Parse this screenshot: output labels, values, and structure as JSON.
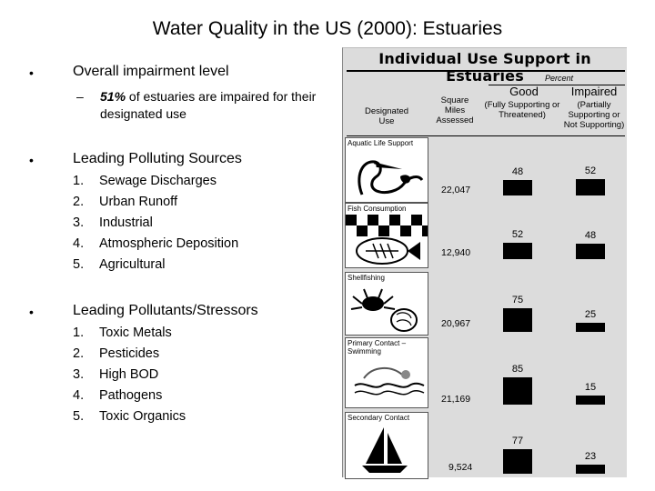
{
  "title": "Water Quality in the US (2000): Estuaries",
  "sections": {
    "impairment": {
      "heading": "Overall impairment level",
      "dash": "–",
      "percent": "51%",
      "text": "of estuaries are impaired for their designated use"
    },
    "sources": {
      "heading": "Leading Polluting Sources",
      "items": [
        {
          "num": "1.",
          "label": "Sewage Discharges"
        },
        {
          "num": "2.",
          "label": "Urban Runoff"
        },
        {
          "num": "3.",
          "label": "Industrial"
        },
        {
          "num": "4.",
          "label": "Atmospheric Deposition"
        },
        {
          "num": "5.",
          "label": "Agricultural"
        }
      ]
    },
    "pollutants": {
      "heading": "Leading Pollutants/Stressors",
      "items": [
        {
          "num": "1.",
          "label": "Toxic Metals"
        },
        {
          "num": "2.",
          "label": "Pesticides"
        },
        {
          "num": "3.",
          "label": "High BOD"
        },
        {
          "num": "4.",
          "label": "Pathogens"
        },
        {
          "num": "5.",
          "label": "Toxic Organics"
        }
      ]
    }
  },
  "bullet_glyph": "•",
  "figure": {
    "title": "Individual Use Support in Estuaries",
    "percent_label": "Percent",
    "good_label": "Good",
    "good_sub": "(Fully Supporting or Threatened)",
    "impaired_label": "Impaired",
    "impaired_sub": "(Partially Supporting or Not Supporting)",
    "col_use": "Designated Use",
    "col_area": "Square Miles Assessed",
    "rows": [
      {
        "use": "Aquatic Life Support",
        "area": "22,047",
        "good": "48",
        "impaired": "52",
        "icon": "heron-icon"
      },
      {
        "use": "Fish Consumption",
        "area": "12,940",
        "good": "52",
        "impaired": "48",
        "icon": "fish-icon"
      },
      {
        "use": "Shellfishing",
        "area": "20,967",
        "good": "75",
        "impaired": "25",
        "icon": "crab-icon"
      },
      {
        "use": "Primary Contact – Swimming",
        "area": "21,169",
        "good": "85",
        "impaired": "15",
        "icon": "swimmer-icon"
      },
      {
        "use": "Secondary Contact",
        "area": "9,524",
        "good": "77",
        "impaired": "23",
        "icon": "sailboat-icon"
      }
    ]
  }
}
